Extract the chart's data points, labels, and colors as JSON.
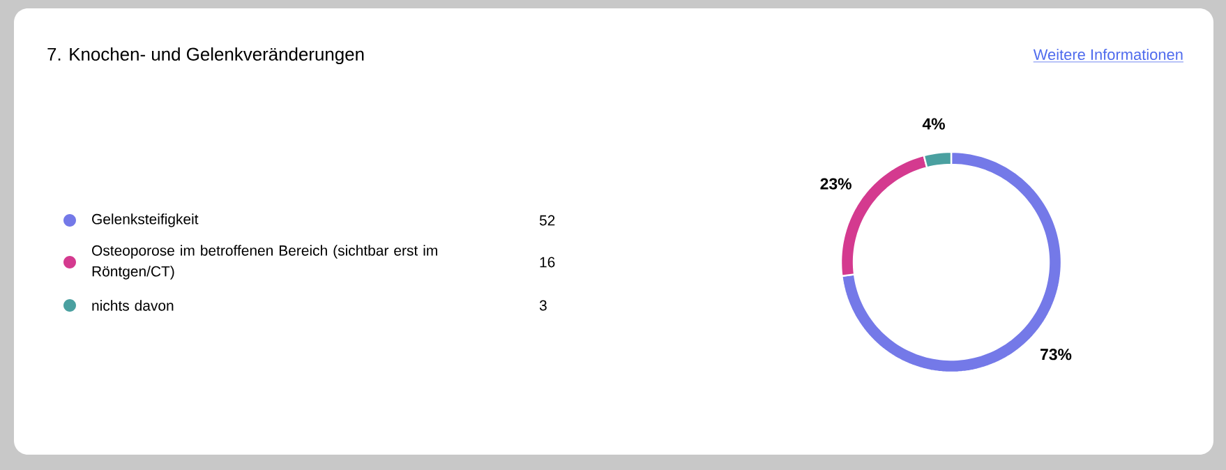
{
  "chart_data": {
    "type": "donut",
    "title": "7. Knochen- und Gelenkveränderungen",
    "annotations": [
      "Weitere Informationen",
      "52",
      "16",
      "3"
    ],
    "categories": [
      "Gelenksteifigkeit",
      "Osteoporose im betroffenen Bereich (sichtbar erst im Röntgen/CT)",
      "nichts davon"
    ],
    "values": [
      73,
      23,
      4
    ],
    "colors": [
      "#7479e8",
      "#d43a8f",
      "#4aa0a0"
    ],
    "value_labels": [
      "73%",
      "23%",
      "4%"
    ],
    "legend": "left"
  }
}
